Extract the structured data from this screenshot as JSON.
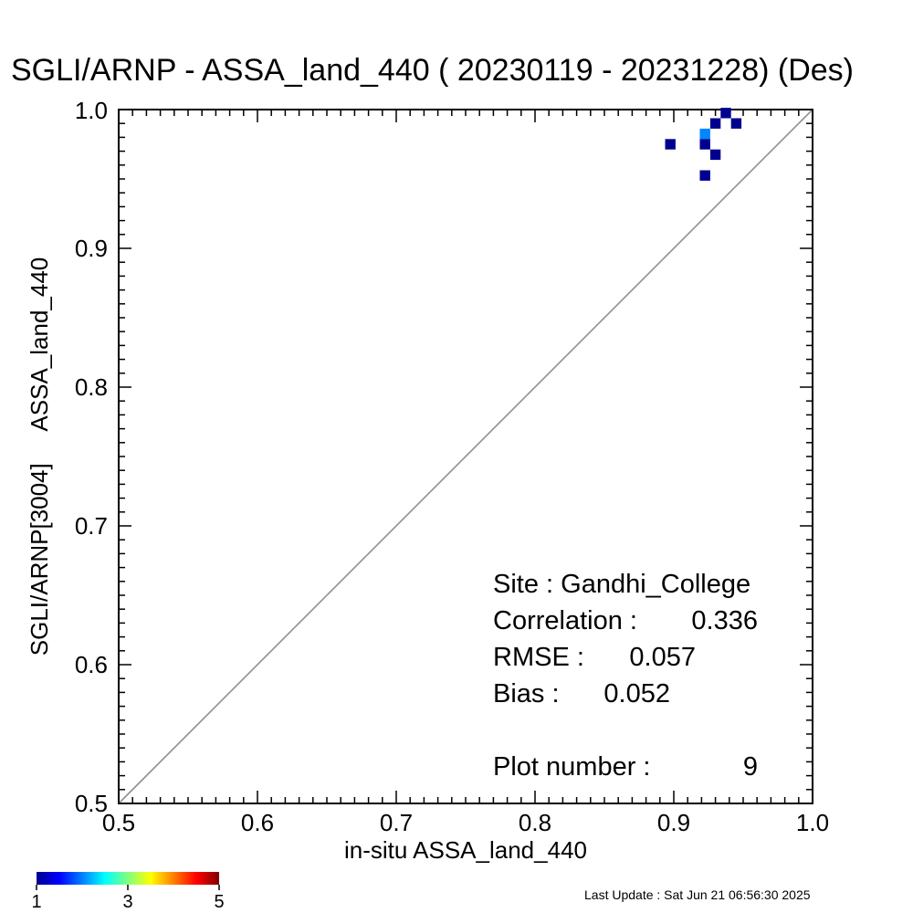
{
  "chart_data": {
    "type": "heatmap",
    "title": "SGLI/ARNP - ASSA_land_440 ( 20230119 - 20231228) (Des)",
    "xlabel": "in-situ ASSA_land_440",
    "ylabel": "SGLI/ARNP[3004]     ASSA_land_440",
    "xlim": [
      0.5,
      1.0
    ],
    "ylim": [
      0.5,
      1.0
    ],
    "x_ticks": [
      "0.5",
      "0.6",
      "0.7",
      "0.8",
      "0.9",
      "1.0"
    ],
    "y_ticks": [
      "0.5",
      "0.6",
      "0.7",
      "0.8",
      "0.9",
      "1.0"
    ],
    "one_to_one_line": true,
    "points": [
      {
        "x": 0.9375,
        "y": 0.9975,
        "count": 1
      },
      {
        "x": 0.93,
        "y": 0.99,
        "count": 1
      },
      {
        "x": 0.945,
        "y": 0.99,
        "count": 1
      },
      {
        "x": 0.9225,
        "y": 0.9825,
        "count": 2
      },
      {
        "x": 0.8975,
        "y": 0.975,
        "count": 1
      },
      {
        "x": 0.9225,
        "y": 0.975,
        "count": 1
      },
      {
        "x": 0.93,
        "y": 0.9675,
        "count": 1
      },
      {
        "x": 0.9225,
        "y": 0.9525,
        "count": 1
      }
    ],
    "stats": {
      "site_label": "Site : Gandhi_College",
      "correlation_label": "Correlation :",
      "correlation_value": "0.336",
      "rmse_label": "RMSE :",
      "rmse_value": "0.057",
      "bias_label": "Bias :",
      "bias_value": "0.052",
      "plot_number_label": "Plot number :",
      "plot_number_value": "9"
    },
    "colorbar": {
      "min_label": "1",
      "mid_label": "3",
      "max_label": "5",
      "min": 1,
      "max": 5,
      "colormap": "jet"
    }
  },
  "footer": {
    "last_update": "Last Update : Sat Jun 21 06:56:30 2025"
  }
}
